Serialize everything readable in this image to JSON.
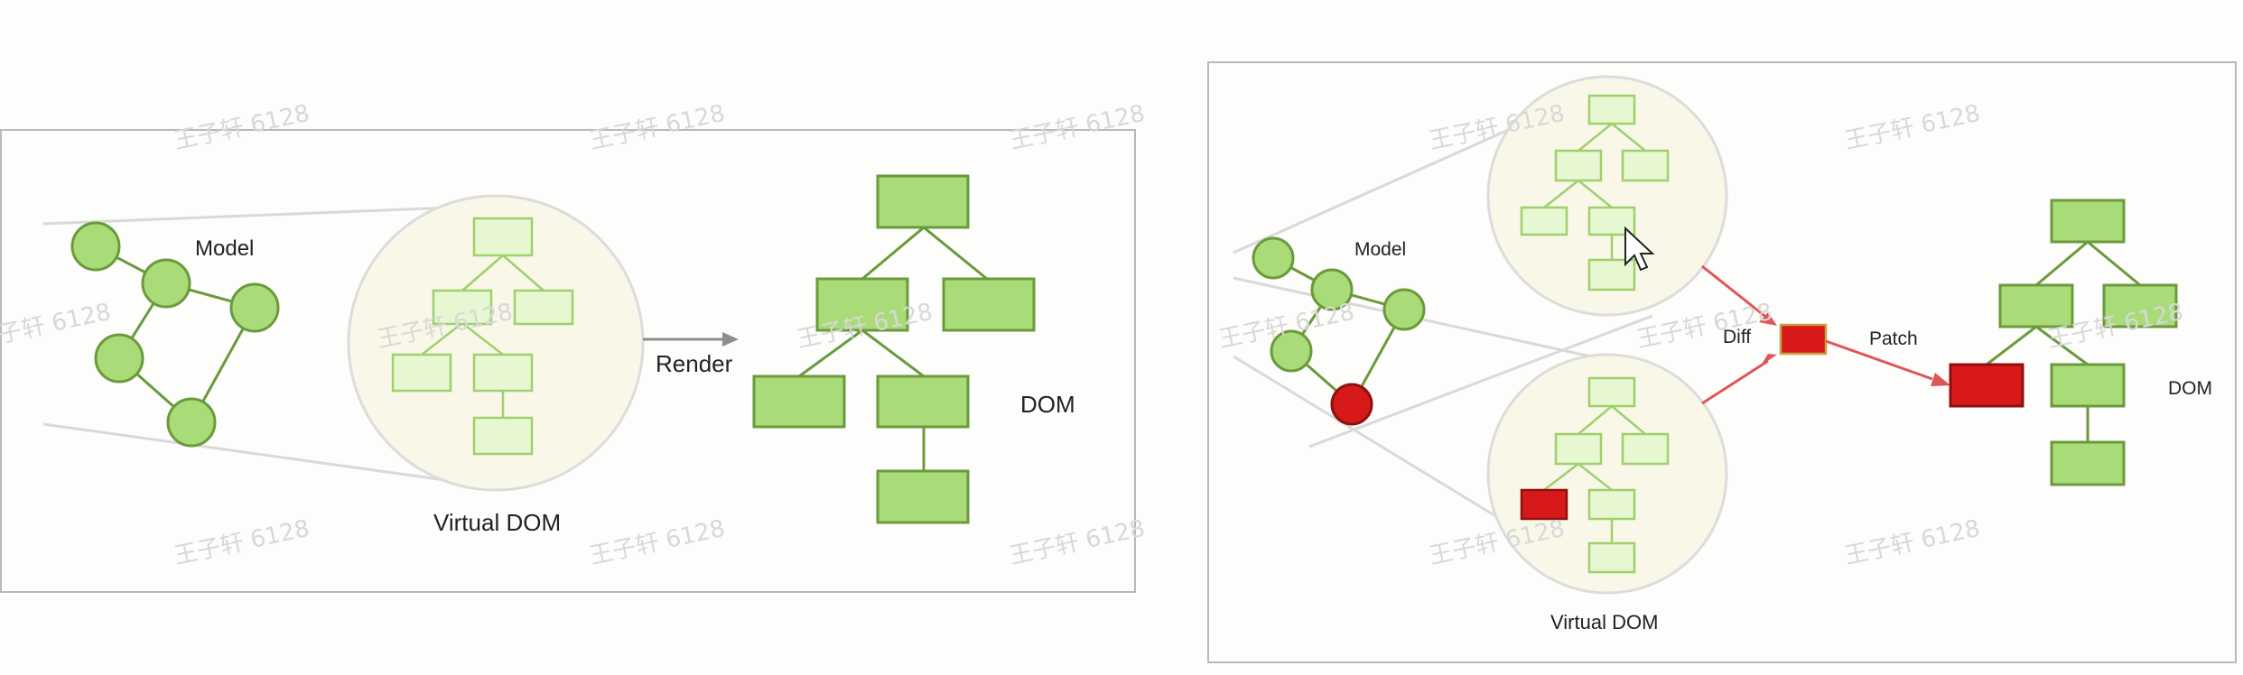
{
  "left_panel": {
    "model_label": "Model",
    "virtual_dom_label": "Virtual DOM",
    "render_label": "Render",
    "dom_label": "DOM"
  },
  "right_panel": {
    "model_label": "Model",
    "virtual_dom_label": "Virtual DOM",
    "diff_label": "Diff",
    "patch_label": "Patch",
    "dom_label": "DOM"
  },
  "watermark": "王子轩 6128",
  "colors": {
    "node_fill": "#a9dc78",
    "node_stroke": "#6a9a3c",
    "vdom_fill": "#e6f7d2",
    "vdom_stroke": "#9fd06c",
    "circle_bg": "#f8f7e8",
    "changed": "#d81919",
    "patch_arrow": "#e05555",
    "render_arrow": "#8d8d8d"
  }
}
